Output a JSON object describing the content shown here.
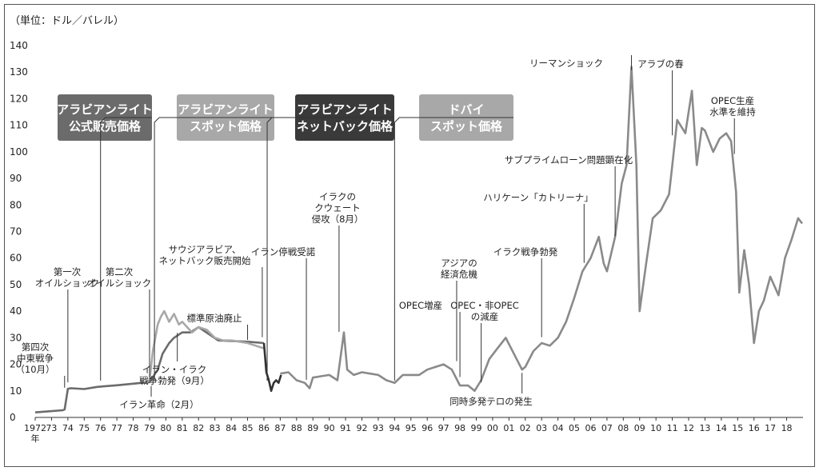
{
  "chart_data": {
    "type": "line",
    "unit_label": "（単位：ドル／バレル）",
    "ylim": [
      0,
      140
    ],
    "yticks": [
      0,
      10,
      20,
      30,
      40,
      50,
      60,
      70,
      80,
      90,
      100,
      110,
      120,
      130,
      140
    ],
    "xticks": [
      {
        "year": 1972,
        "label": "1972"
      },
      {
        "year": 1973,
        "label": "73"
      },
      {
        "year": 1974,
        "label": "74"
      },
      {
        "year": 1975,
        "label": "75"
      },
      {
        "year": 1976,
        "label": "76"
      },
      {
        "year": 1977,
        "label": "77"
      },
      {
        "year": 1978,
        "label": "78"
      },
      {
        "year": 1979,
        "label": "79"
      },
      {
        "year": 1980,
        "label": "80"
      },
      {
        "year": 1981,
        "label": "81"
      },
      {
        "year": 1982,
        "label": "82"
      },
      {
        "year": 1983,
        "label": "83"
      },
      {
        "year": 1984,
        "label": "84"
      },
      {
        "year": 1985,
        "label": "85"
      },
      {
        "year": 1986,
        "label": "86"
      },
      {
        "year": 1987,
        "label": "87"
      },
      {
        "year": 1988,
        "label": "88"
      },
      {
        "year": 1989,
        "label": "89"
      },
      {
        "year": 1990,
        "label": "90"
      },
      {
        "year": 1991,
        "label": "91"
      },
      {
        "year": 1992,
        "label": "92"
      },
      {
        "year": 1993,
        "label": "93"
      },
      {
        "year": 1994,
        "label": "94"
      },
      {
        "year": 1995,
        "label": "95"
      },
      {
        "year": 1996,
        "label": "96"
      },
      {
        "year": 1997,
        "label": "97"
      },
      {
        "year": 1998,
        "label": "98"
      },
      {
        "year": 1999,
        "label": "99"
      },
      {
        "year": 2000,
        "label": "00"
      },
      {
        "year": 2001,
        "label": "01"
      },
      {
        "year": 2002,
        "label": "02"
      },
      {
        "year": 2003,
        "label": "03"
      },
      {
        "year": 2004,
        "label": "04"
      },
      {
        "year": 2005,
        "label": "05"
      },
      {
        "year": 2006,
        "label": "06"
      },
      {
        "year": 2007,
        "label": "07"
      },
      {
        "year": 2008,
        "label": "08"
      },
      {
        "year": 2009,
        "label": "09"
      },
      {
        "year": 2010,
        "label": "10"
      },
      {
        "year": 2011,
        "label": "11"
      },
      {
        "year": 2012,
        "label": "12"
      },
      {
        "year": 2013,
        "label": "13"
      },
      {
        "year": 2014,
        "label": "14"
      },
      {
        "year": 2015,
        "label": "15"
      },
      {
        "year": 2016,
        "label": "16"
      },
      {
        "year": 2017,
        "label": "17"
      },
      {
        "year": 2018,
        "label": "18"
      }
    ],
    "year_suffix": "年",
    "series": [
      {
        "name": "アラビアンライト公式販売価格",
        "color": "#6b6b6b",
        "points": [
          [
            1972,
            1.9
          ],
          [
            1973.7,
            2.7
          ],
          [
            1973.8,
            3.0
          ],
          [
            1974.0,
            10.8
          ],
          [
            1974.2,
            11.0
          ],
          [
            1975.0,
            10.7
          ],
          [
            1975.8,
            11.5
          ],
          [
            1977.0,
            12.1
          ],
          [
            1978.0,
            12.7
          ],
          [
            1979.0,
            13.3
          ],
          [
            1979.5,
            18.0
          ],
          [
            1979.8,
            24.0
          ],
          [
            1980.2,
            28.0
          ],
          [
            1980.5,
            30.0
          ],
          [
            1981.0,
            32.0
          ],
          [
            1981.5,
            32.0
          ],
          [
            1982.0,
            34.0
          ],
          [
            1983.2,
            29.0
          ],
          [
            1985.0,
            28.5
          ],
          [
            1986.0,
            28.0
          ]
        ]
      },
      {
        "name": "アラビアンライトスポット価格",
        "color": "#a8a8a8",
        "points": [
          [
            1978.7,
            13.0
          ],
          [
            1979.0,
            14.0
          ],
          [
            1979.2,
            25.0
          ],
          [
            1979.5,
            35.0
          ],
          [
            1979.7,
            38.0
          ],
          [
            1979.9,
            40.0
          ],
          [
            1980.2,
            36.0
          ],
          [
            1980.5,
            39.0
          ],
          [
            1980.8,
            35.0
          ],
          [
            1981.0,
            36.0
          ],
          [
            1981.3,
            34.0
          ],
          [
            1981.6,
            32.0
          ],
          [
            1982.0,
            34.0
          ],
          [
            1982.5,
            33.0
          ],
          [
            1983.0,
            30.0
          ],
          [
            1983.5,
            29.0
          ],
          [
            1984.0,
            29.0
          ],
          [
            1984.5,
            28.5
          ],
          [
            1985.0,
            28.0
          ],
          [
            1985.5,
            27.0
          ],
          [
            1986.0,
            26.0
          ]
        ]
      },
      {
        "name": "アラビアンライトネットバック価格",
        "color": "#333333",
        "points": [
          [
            1986.0,
            28.0
          ],
          [
            1986.15,
            17.0
          ],
          [
            1986.3,
            14.0
          ],
          [
            1986.45,
            10.0
          ],
          [
            1986.6,
            13.0
          ],
          [
            1986.75,
            14.0
          ],
          [
            1986.9,
            13.0
          ],
          [
            1987.05,
            16.0
          ]
        ]
      },
      {
        "name": "ドバイスポット価格",
        "color": "#8a8a8a",
        "points": [
          [
            1987.0,
            16.5
          ],
          [
            1987.5,
            17.0
          ],
          [
            1988.0,
            14.0
          ],
          [
            1988.5,
            13.0
          ],
          [
            1988.8,
            11.0
          ],
          [
            1989.0,
            15.0
          ],
          [
            1989.5,
            15.5
          ],
          [
            1990.0,
            16.0
          ],
          [
            1990.5,
            14.0
          ],
          [
            1990.9,
            32.0
          ],
          [
            1991.1,
            18.0
          ],
          [
            1991.5,
            16.0
          ],
          [
            1992.0,
            17.0
          ],
          [
            1992.5,
            16.5
          ],
          [
            1993.0,
            16.0
          ],
          [
            1993.5,
            14.0
          ],
          [
            1994.0,
            13.0
          ],
          [
            1994.5,
            16.0
          ],
          [
            1995.0,
            16.0
          ],
          [
            1995.5,
            16.0
          ],
          [
            1996.0,
            18.0
          ],
          [
            1996.5,
            19.0
          ],
          [
            1997.0,
            20.0
          ],
          [
            1997.5,
            18.0
          ],
          [
            1998.0,
            12.0
          ],
          [
            1998.5,
            12.0
          ],
          [
            1998.9,
            10.0
          ],
          [
            1999.3,
            14.0
          ],
          [
            1999.8,
            22.0
          ],
          [
            2000.3,
            26.0
          ],
          [
            2000.8,
            30.0
          ],
          [
            2001.3,
            24.0
          ],
          [
            2001.8,
            18.0
          ],
          [
            2002.0,
            19.0
          ],
          [
            2002.5,
            25.0
          ],
          [
            2003.0,
            28.0
          ],
          [
            2003.5,
            27.0
          ],
          [
            2004.0,
            30.0
          ],
          [
            2004.5,
            36.0
          ],
          [
            2005.0,
            45.0
          ],
          [
            2005.5,
            55.0
          ],
          [
            2006.0,
            60.0
          ],
          [
            2006.5,
            68.0
          ],
          [
            2006.8,
            58.0
          ],
          [
            2007.0,
            55.0
          ],
          [
            2007.5,
            68.0
          ],
          [
            2007.9,
            88.0
          ],
          [
            2008.2,
            95.0
          ],
          [
            2008.5,
            132.0
          ],
          [
            2008.8,
            95.0
          ],
          [
            2009.0,
            40.0
          ],
          [
            2009.4,
            58.0
          ],
          [
            2009.8,
            75.0
          ],
          [
            2010.3,
            78.0
          ],
          [
            2010.8,
            84.0
          ],
          [
            2011.0,
            95.0
          ],
          [
            2011.3,
            112.0
          ],
          [
            2011.8,
            107.0
          ],
          [
            2012.2,
            123.0
          ],
          [
            2012.5,
            95.0
          ],
          [
            2012.8,
            109.0
          ],
          [
            2013.0,
            108.0
          ],
          [
            2013.5,
            100.0
          ],
          [
            2013.9,
            105.0
          ],
          [
            2014.3,
            107.0
          ],
          [
            2014.6,
            104.0
          ],
          [
            2014.9,
            85.0
          ],
          [
            2015.1,
            47.0
          ],
          [
            2015.4,
            63.0
          ],
          [
            2015.7,
            50.0
          ],
          [
            2016.0,
            28.0
          ],
          [
            2016.3,
            40.0
          ],
          [
            2016.6,
            44.0
          ],
          [
            2017.0,
            53.0
          ],
          [
            2017.5,
            46.0
          ],
          [
            2017.9,
            60.0
          ],
          [
            2018.3,
            67.0
          ],
          [
            2018.7,
            75.0
          ],
          [
            2018.95,
            73.0
          ]
        ]
      }
    ],
    "boxes": [
      {
        "id": "box-osp",
        "lines": [
          "アラビアンライト",
          "公式販売価格"
        ],
        "fill": "#6b6b6b",
        "pointer_year": 1976.0
      },
      {
        "id": "box-spot",
        "lines": [
          "アラビアンライト",
          "スポット価格"
        ],
        "fill": "#a8a8a8",
        "pointer_year": 1979.3
      },
      {
        "id": "box-netback",
        "lines": [
          "アラビアンライト",
          "ネットバック価格"
        ],
        "fill": "#3a3a3a",
        "pointer_year": 1986.2
      },
      {
        "id": "box-dubai",
        "lines": [
          "ドバイ",
          "スポット価格"
        ],
        "fill": "#a8a8a8",
        "pointer_year": 1994.0
      }
    ],
    "annotations": [
      {
        "lines": [
          "第四次",
          "中東戦争",
          "（10月）"
        ],
        "year": 1973.8,
        "value": 10
      },
      {
        "lines": [
          "第一次",
          "オイルショック"
        ],
        "year": 1974.0,
        "value": 12
      },
      {
        "lines": [
          "第二次",
          "オイルショック"
        ],
        "year": 1979.0,
        "value": 14
      },
      {
        "lines": [
          "イラン革命（2月）"
        ],
        "year": 1979.1,
        "value": 13
      },
      {
        "lines": [
          "イラン・イラク",
          "戦争勃発（9月）"
        ],
        "year": 1980.7,
        "value": 33
      },
      {
        "lines": [
          "標準原油廃止"
        ],
        "year": 1985.0,
        "value": 28
      },
      {
        "lines": [
          "サウジアラビア、",
          "ネットバック販売開始"
        ],
        "year": 1985.9,
        "value": 29
      },
      {
        "lines": [
          "イラン停戦受諾"
        ],
        "year": 1988.6,
        "value": 13
      },
      {
        "lines": [
          "イラクの",
          "クウェート",
          "侵攻（8月）"
        ],
        "year": 1990.6,
        "value": 31
      },
      {
        "lines": [
          "OPEC増産"
        ],
        "year": 1998.0,
        "value": 14
      },
      {
        "lines": [
          "アジアの",
          "経済危機"
        ],
        "year": 1997.8,
        "value": 20
      },
      {
        "lines": [
          "OPEC・非OPEC",
          "の減産"
        ],
        "year": 1999.3,
        "value": 12
      },
      {
        "lines": [
          "同時多発テロの発生"
        ],
        "year": 2001.8,
        "value": 18
      },
      {
        "lines": [
          "イラク戦争勃発"
        ],
        "year": 2003.0,
        "value": 29
      },
      {
        "lines": [
          "ハリケーン「カトリーナ」"
        ],
        "year": 2005.6,
        "value": 57
      },
      {
        "lines": [
          "サブプライムローン問題顕在化"
        ],
        "year": 2007.5,
        "value": 67
      },
      {
        "lines": [
          "リーマンショック"
        ],
        "year": 2008.5,
        "value": 132
      },
      {
        "lines": [
          "アラブの春"
        ],
        "year": 2011.0,
        "value": 105
      },
      {
        "lines": [
          "OPEC生産",
          "水準を維持"
        ],
        "year": 2014.8,
        "value": 98
      }
    ]
  }
}
